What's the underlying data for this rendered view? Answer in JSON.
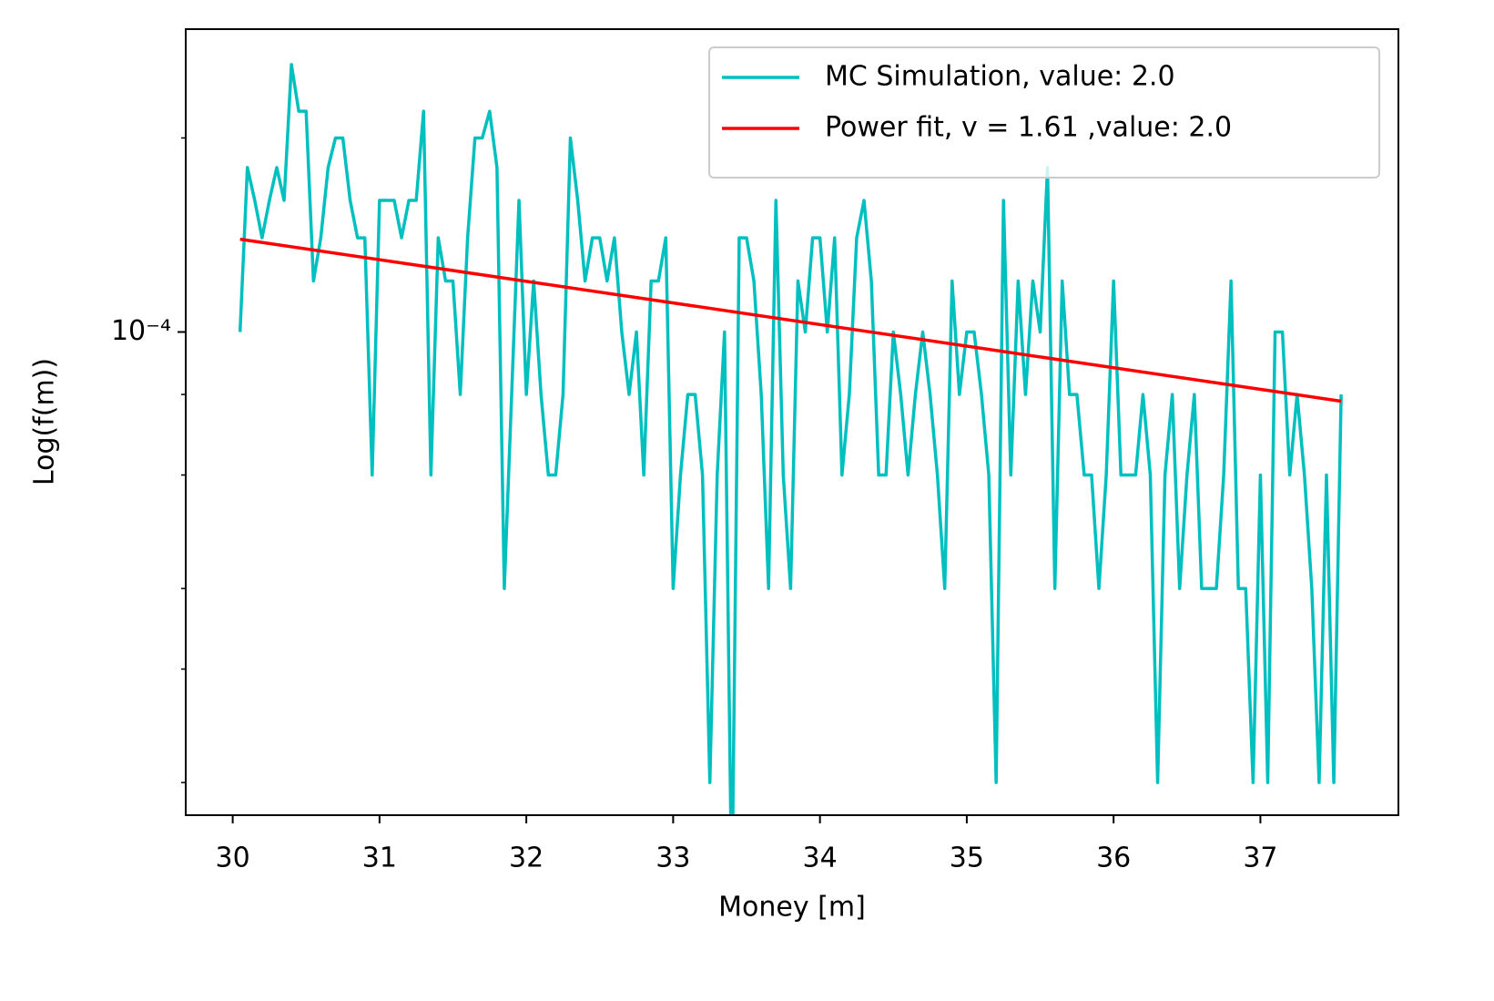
{
  "chart_data": {
    "type": "line",
    "x_label": "Money [m]",
    "y_label": "Log(f(m))",
    "log_y": true,
    "xlim": [
      29.68,
      37.94
    ],
    "ylim": [
      1.78e-05,
      0.000295
    ],
    "xticks": [
      30,
      31,
      32,
      33,
      34,
      35,
      36,
      37
    ],
    "yticks": [
      {
        "value": 0.0001,
        "label": "10⁻⁴"
      }
    ],
    "minor_yticks": [
      2e-05,
      3e-05,
      4e-05,
      6e-05,
      8e-05,
      0.0002
    ],
    "legend_position": "upper right",
    "series": [
      {
        "name": "MC Simulation, value: 2.0",
        "color": "#00bfbf",
        "x": [
          30.05,
          30.1,
          30.15,
          30.2,
          30.25,
          30.3,
          30.35,
          30.4,
          30.45,
          30.5,
          30.55,
          30.6,
          30.65,
          30.7,
          30.75,
          30.8,
          30.85,
          30.9,
          30.95,
          31.0,
          31.05,
          31.1,
          31.15,
          31.2,
          31.25,
          31.3,
          31.35,
          31.4,
          31.45,
          31.5,
          31.55,
          31.6,
          31.65,
          31.7,
          31.75,
          31.8,
          31.85,
          31.9,
          31.95,
          32.0,
          32.05,
          32.1,
          32.15,
          32.2,
          32.25,
          32.3,
          32.35,
          32.4,
          32.45,
          32.5,
          32.55,
          32.6,
          32.65,
          32.7,
          32.75,
          32.8,
          32.85,
          32.9,
          32.95,
          33.0,
          33.05,
          33.1,
          33.15,
          33.2,
          33.25,
          33.3,
          33.35,
          33.4,
          33.45,
          33.5,
          33.55,
          33.6,
          33.65,
          33.7,
          33.75,
          33.8,
          33.85,
          33.9,
          33.95,
          34.0,
          34.05,
          34.1,
          34.15,
          34.2,
          34.25,
          34.3,
          34.35,
          34.4,
          34.45,
          34.5,
          34.55,
          34.6,
          34.65,
          34.7,
          34.75,
          34.8,
          34.85,
          34.9,
          34.95,
          35.0,
          35.05,
          35.1,
          35.15,
          35.2,
          35.25,
          35.3,
          35.35,
          35.4,
          35.45,
          35.5,
          35.55,
          35.6,
          35.65,
          35.7,
          35.75,
          35.8,
          35.85,
          35.9,
          35.95,
          36.0,
          36.05,
          36.1,
          36.15,
          36.2,
          36.25,
          36.3,
          36.35,
          36.4,
          36.45,
          36.5,
          36.55,
          36.6,
          36.65,
          36.7,
          36.75,
          36.8,
          36.85,
          36.9,
          36.95,
          37.0,
          37.05,
          37.1,
          37.15,
          37.2,
          37.25,
          37.3,
          37.35,
          37.4,
          37.45,
          37.5,
          37.55
        ],
        "values": [
          0.0001,
          0.00018,
          0.00016,
          0.00014,
          0.00016,
          0.00018,
          0.00016,
          0.00026,
          0.00022,
          0.00022,
          0.00012,
          0.00014,
          0.00018,
          0.0002,
          0.0002,
          0.00016,
          0.00014,
          0.00014,
          6e-05,
          0.00016,
          0.00016,
          0.00016,
          0.00014,
          0.00016,
          0.00016,
          0.00022,
          6e-05,
          0.00014,
          0.00012,
          0.00012,
          8e-05,
          0.00014,
          0.0002,
          0.0002,
          0.00022,
          0.00018,
          4e-05,
          8e-05,
          0.00016,
          8e-05,
          0.00012,
          8e-05,
          6e-05,
          6e-05,
          8e-05,
          0.0002,
          0.00016,
          0.00012,
          0.00014,
          0.00014,
          0.00012,
          0.00014,
          0.0001,
          8e-05,
          0.0001,
          6e-05,
          0.00012,
          0.00012,
          0.00014,
          4e-05,
          6e-05,
          8e-05,
          8e-05,
          6e-05,
          2e-05,
          6e-05,
          0.0001,
          0,
          0.00014,
          0.00014,
          0.00012,
          8e-05,
          4e-05,
          0.00016,
          6e-05,
          4e-05,
          0.00012,
          0.0001,
          0.00014,
          0.00014,
          0.0001,
          0.00014,
          6e-05,
          8e-05,
          0.00014,
          0.00016,
          0.00012,
          6e-05,
          6e-05,
          0.0001,
          8e-05,
          6e-05,
          8e-05,
          0.0001,
          8e-05,
          6e-05,
          4e-05,
          0.00012,
          8e-05,
          0.0001,
          0.0001,
          8e-05,
          6e-05,
          2e-05,
          0.00016,
          6e-05,
          0.00012,
          8e-05,
          0.00012,
          0.0001,
          0.00018,
          4e-05,
          0.00012,
          8e-05,
          8e-05,
          6e-05,
          6e-05,
          4e-05,
          6e-05,
          0.00012,
          6e-05,
          6e-05,
          6e-05,
          8e-05,
          6e-05,
          2e-05,
          6e-05,
          8e-05,
          4e-05,
          6e-05,
          8e-05,
          4e-05,
          4e-05,
          4e-05,
          6e-05,
          0.00012,
          4e-05,
          4e-05,
          2e-05,
          6e-05,
          2e-05,
          0.0001,
          0.0001,
          6e-05,
          8e-05,
          6e-05,
          4e-05,
          2e-05,
          6e-05,
          2e-05,
          8e-05
        ]
      },
      {
        "name": "Power fit, v = 1.61 ,value: 2.0",
        "color": "#ff0000",
        "x": [
          30.05,
          37.55
        ],
        "values": [
          0.0001393,
          7.81e-05
        ]
      }
    ]
  }
}
